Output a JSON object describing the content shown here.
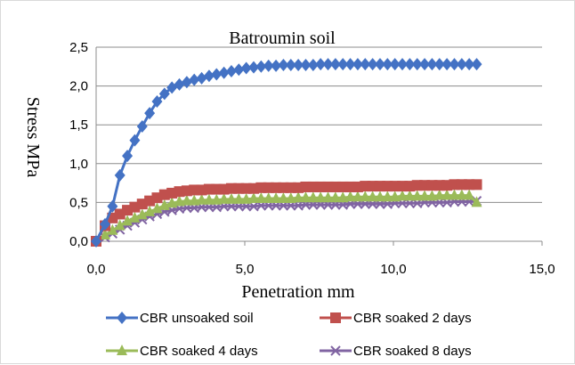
{
  "chart_data": {
    "type": "line",
    "title": "Batroumin soil",
    "xlabel": "Penetration mm",
    "ylabel": "Stress MPa",
    "xlim": [
      0,
      15
    ],
    "ylim": [
      0,
      2.5
    ],
    "x_ticks": [
      "0,0",
      "5,0",
      "10,0",
      "15,0"
    ],
    "y_ticks": [
      "0,0",
      "0,5",
      "1,0",
      "1,5",
      "2,0",
      "2,5"
    ],
    "grid": "horizontal",
    "legend_position": "bottom",
    "series": [
      {
        "name": "CBR unsoaked soil",
        "color": "#4472C4",
        "marker": "diamond",
        "x": [
          0.0,
          0.3,
          0.55,
          0.8,
          1.05,
          1.3,
          1.55,
          1.8,
          2.05,
          2.3,
          2.55,
          2.8,
          3.05,
          3.3,
          3.55,
          3.8,
          4.05,
          4.3,
          4.55,
          4.8,
          5.05,
          5.3,
          5.55,
          5.8,
          6.05,
          6.3,
          6.55,
          6.8,
          7.05,
          7.3,
          7.55,
          7.8,
          8.05,
          8.3,
          8.55,
          8.8,
          9.05,
          9.3,
          9.55,
          9.8,
          10.05,
          10.3,
          10.55,
          10.8,
          11.05,
          11.3,
          11.55,
          11.8,
          12.05,
          12.3,
          12.55,
          12.8
        ],
        "y": [
          0.0,
          0.22,
          0.45,
          0.85,
          1.1,
          1.3,
          1.48,
          1.65,
          1.8,
          1.9,
          1.98,
          2.02,
          2.05,
          2.08,
          2.1,
          2.13,
          2.15,
          2.17,
          2.19,
          2.21,
          2.23,
          2.24,
          2.25,
          2.26,
          2.26,
          2.27,
          2.27,
          2.27,
          2.27,
          2.27,
          2.28,
          2.28,
          2.28,
          2.28,
          2.28,
          2.28,
          2.28,
          2.28,
          2.28,
          2.28,
          2.28,
          2.28,
          2.28,
          2.28,
          2.28,
          2.28,
          2.28,
          2.28,
          2.28,
          2.28,
          2.28,
          2.28
        ]
      },
      {
        "name": "CBR soaked 2 days",
        "color": "#C0504D",
        "marker": "square",
        "x": [
          0.0,
          0.3,
          0.55,
          0.8,
          1.05,
          1.3,
          1.55,
          1.8,
          2.05,
          2.3,
          2.55,
          2.8,
          3.05,
          3.3,
          3.55,
          3.8,
          4.05,
          4.3,
          4.55,
          4.8,
          5.05,
          5.3,
          5.55,
          5.8,
          6.05,
          6.3,
          6.55,
          6.8,
          7.05,
          7.3,
          7.55,
          7.8,
          8.05,
          8.3,
          8.55,
          8.8,
          9.05,
          9.3,
          9.55,
          9.8,
          10.05,
          10.3,
          10.55,
          10.8,
          11.05,
          11.3,
          11.55,
          11.8,
          12.05,
          12.3,
          12.55,
          12.8
        ],
        "y": [
          0.0,
          0.2,
          0.3,
          0.35,
          0.4,
          0.44,
          0.48,
          0.52,
          0.56,
          0.6,
          0.62,
          0.64,
          0.65,
          0.66,
          0.66,
          0.67,
          0.67,
          0.67,
          0.68,
          0.68,
          0.68,
          0.68,
          0.69,
          0.69,
          0.69,
          0.69,
          0.69,
          0.69,
          0.7,
          0.7,
          0.7,
          0.7,
          0.7,
          0.7,
          0.7,
          0.7,
          0.71,
          0.71,
          0.71,
          0.71,
          0.71,
          0.71,
          0.71,
          0.72,
          0.72,
          0.72,
          0.72,
          0.72,
          0.73,
          0.73,
          0.73,
          0.73
        ]
      },
      {
        "name": "CBR soaked 4 days",
        "color": "#9BBB59",
        "marker": "triangle",
        "x": [
          0.0,
          0.3,
          0.55,
          0.8,
          1.05,
          1.3,
          1.55,
          1.8,
          2.05,
          2.3,
          2.55,
          2.8,
          3.05,
          3.3,
          3.55,
          3.8,
          4.05,
          4.3,
          4.55,
          4.8,
          5.05,
          5.3,
          5.55,
          5.8,
          6.05,
          6.3,
          6.55,
          6.8,
          7.05,
          7.3,
          7.55,
          7.8,
          8.05,
          8.3,
          8.55,
          8.8,
          9.05,
          9.3,
          9.55,
          9.8,
          10.05,
          10.3,
          10.55,
          10.8,
          11.05,
          11.3,
          11.55,
          11.8,
          12.05,
          12.3,
          12.55,
          12.8
        ],
        "y": [
          0.0,
          0.08,
          0.14,
          0.2,
          0.26,
          0.3,
          0.34,
          0.38,
          0.42,
          0.46,
          0.49,
          0.51,
          0.52,
          0.52,
          0.53,
          0.53,
          0.53,
          0.54,
          0.54,
          0.54,
          0.54,
          0.55,
          0.55,
          0.55,
          0.55,
          0.55,
          0.55,
          0.56,
          0.56,
          0.56,
          0.56,
          0.56,
          0.56,
          0.56,
          0.57,
          0.57,
          0.57,
          0.57,
          0.57,
          0.57,
          0.57,
          0.58,
          0.58,
          0.58,
          0.58,
          0.58,
          0.59,
          0.59,
          0.59,
          0.59,
          0.59,
          0.5
        ]
      },
      {
        "name": "CBR soaked 8 days",
        "color": "#8064A2",
        "marker": "x",
        "x": [
          0.0,
          0.3,
          0.55,
          0.8,
          1.05,
          1.3,
          1.55,
          1.8,
          2.05,
          2.3,
          2.55,
          2.8,
          3.05,
          3.3,
          3.55,
          3.8,
          4.05,
          4.3,
          4.55,
          4.8,
          5.05,
          5.3,
          5.55,
          5.8,
          6.05,
          6.3,
          6.55,
          6.8,
          7.05,
          7.3,
          7.55,
          7.8,
          8.05,
          8.3,
          8.55,
          8.8,
          9.05,
          9.3,
          9.55,
          9.8,
          10.05,
          10.3,
          10.55,
          10.8,
          11.05,
          11.3,
          11.55,
          11.8,
          12.05,
          12.3,
          12.55,
          12.8
        ],
        "y": [
          0.0,
          0.05,
          0.1,
          0.15,
          0.2,
          0.24,
          0.28,
          0.32,
          0.35,
          0.38,
          0.4,
          0.42,
          0.43,
          0.43,
          0.44,
          0.44,
          0.44,
          0.45,
          0.45,
          0.45,
          0.45,
          0.45,
          0.46,
          0.46,
          0.46,
          0.46,
          0.46,
          0.46,
          0.47,
          0.47,
          0.47,
          0.47,
          0.47,
          0.47,
          0.48,
          0.48,
          0.48,
          0.48,
          0.48,
          0.48,
          0.49,
          0.49,
          0.49,
          0.49,
          0.5,
          0.5,
          0.5,
          0.5,
          0.51,
          0.51,
          0.51,
          0.52
        ]
      }
    ]
  }
}
